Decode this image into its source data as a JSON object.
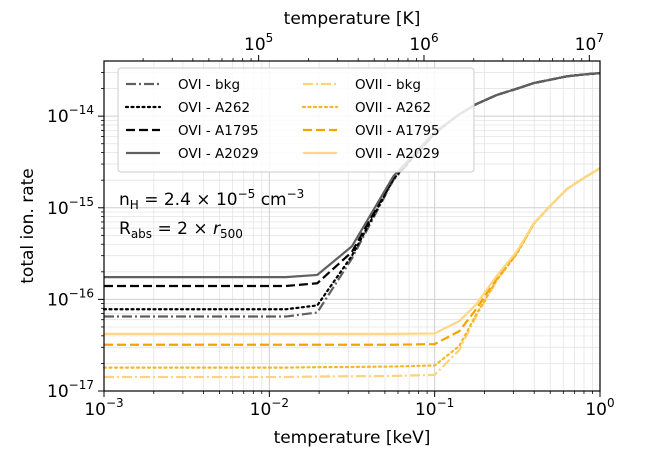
{
  "chart_data": {
    "type": "line",
    "xlabel": "temperature [keV]",
    "ylabel": "total ion. rate",
    "top_xlabel": "temperature [K]",
    "xscale": "log",
    "yscale": "log",
    "xlim": [
      0.001,
      1.0
    ],
    "ylim": [
      1e-17,
      4e-14
    ],
    "top_xlim_K": [
      11604.5,
      11604500
    ],
    "grid": true,
    "legend_position": "upper-left",
    "legend_columns": 2,
    "x_ticks": [
      {
        "value": 0.001,
        "base": "10",
        "exp": "−3"
      },
      {
        "value": 0.01,
        "base": "10",
        "exp": "−2"
      },
      {
        "value": 0.1,
        "base": "10",
        "exp": "−1"
      },
      {
        "value": 1.0,
        "base": "10",
        "exp": "0"
      }
    ],
    "top_x_ticks": [
      {
        "value": 100000,
        "base": "10",
        "exp": "5"
      },
      {
        "value": 1000000,
        "base": "10",
        "exp": "6"
      },
      {
        "value": 10000000,
        "base": "10",
        "exp": "7"
      }
    ],
    "y_ticks": [
      {
        "value": 1e-17,
        "base": "10",
        "exp": "−17"
      },
      {
        "value": 1e-16,
        "base": "10",
        "exp": "−16"
      },
      {
        "value": 1e-15,
        "base": "10",
        "exp": "−15"
      },
      {
        "value": 1e-14,
        "base": "10",
        "exp": "−14"
      }
    ],
    "annotation": {
      "line1": {
        "pre": "n",
        "sub": "H",
        "eq": " = 2.4 × 10",
        "sup": "−5",
        "unit": " cm",
        "unit_sup": "−3"
      },
      "line2": {
        "pre": "R",
        "sub": "abs",
        "eq": " = 2 × ",
        "var": "r",
        "var_sub": "500"
      }
    },
    "x": [
      0.001,
      0.0126,
      0.0195,
      0.0316,
      0.0562,
      0.1,
      0.141,
      0.178,
      0.237,
      0.316,
      0.398,
      0.501,
      0.631,
      0.794,
      1.0
    ],
    "series": [
      {
        "name": "OVI - bkg",
        "ion": "OVI",
        "color": "#606060",
        "style": "dashdot",
        "values": [
          6.5e-17,
          6.5e-17,
          7.2e-17,
          2.8e-16,
          2e-15,
          6.5e-15,
          1.05e-14,
          1.35e-14,
          1.7e-14,
          2e-14,
          2.3e-14,
          2.5e-14,
          2.72e-14,
          2.85e-14,
          2.95e-14
        ]
      },
      {
        "name": "OVI - A262",
        "ion": "OVI",
        "color": "#000000",
        "style": "dotted",
        "values": [
          7.8e-17,
          7.8e-17,
          8.6e-17,
          3e-16,
          2.05e-15,
          6.5e-15,
          1.05e-14,
          1.35e-14,
          1.7e-14,
          2e-14,
          2.3e-14,
          2.5e-14,
          2.72e-14,
          2.85e-14,
          2.95e-14
        ]
      },
      {
        "name": "OVI - A1795",
        "ion": "OVI",
        "color": "#000000",
        "style": "dashed",
        "values": [
          1.4e-16,
          1.4e-16,
          1.5e-16,
          3.3e-16,
          2.1e-15,
          6.6e-15,
          1.05e-14,
          1.35e-14,
          1.7e-14,
          2e-14,
          2.3e-14,
          2.5e-14,
          2.72e-14,
          2.85e-14,
          2.95e-14
        ]
      },
      {
        "name": "OVI - A2029",
        "ion": "OVI",
        "color": "#606060",
        "style": "solid",
        "values": [
          1.75e-16,
          1.75e-16,
          1.85e-16,
          3.8e-16,
          2.2e-15,
          6.7e-15,
          1.05e-14,
          1.35e-14,
          1.7e-14,
          2e-14,
          2.3e-14,
          2.5e-14,
          2.72e-14,
          2.85e-14,
          2.95e-14
        ]
      },
      {
        "name": "OVII - bkg",
        "ion": "OVII",
        "color": "#fcd27a",
        "style": "dashdot",
        "values": [
          1.42e-17,
          1.42e-17,
          1.44e-17,
          1.45e-17,
          1.46e-17,
          1.5e-17,
          2.8e-17,
          6.5e-17,
          1.6e-16,
          3.2e-16,
          6.7e-16,
          1.05e-15,
          1.6e-15,
          2.1e-15,
          2.7e-15
        ]
      },
      {
        "name": "OVII - A262",
        "ion": "OVII",
        "color": "#f5b62a",
        "style": "dotted",
        "values": [
          1.8e-17,
          1.8e-17,
          1.82e-17,
          1.83e-17,
          1.85e-17,
          1.9e-17,
          3.1e-17,
          6.8e-17,
          1.62e-16,
          3.2e-16,
          6.7e-16,
          1.05e-15,
          1.6e-15,
          2.1e-15,
          2.7e-15
        ]
      },
      {
        "name": "OVII - A1795",
        "ion": "OVII",
        "color": "#f5a300",
        "style": "dashed",
        "values": [
          3.2e-17,
          3.2e-17,
          3.2e-17,
          3.2e-17,
          3.2e-17,
          3.25e-17,
          4.5e-17,
          7.8e-17,
          1.7e-16,
          3.3e-16,
          6.8e-16,
          1.05e-15,
          1.6e-15,
          2.1e-15,
          2.7e-15
        ]
      },
      {
        "name": "OVII - A2029",
        "ion": "OVII",
        "color": "#fdd783",
        "style": "solid",
        "values": [
          4.2e-17,
          4.2e-17,
          4.2e-17,
          4.2e-17,
          4.2e-17,
          4.25e-17,
          5.8e-17,
          8.8e-17,
          1.8e-16,
          3.4e-16,
          6.8e-16,
          1.05e-15,
          1.6e-15,
          2.1e-15,
          2.7e-15
        ]
      }
    ]
  }
}
